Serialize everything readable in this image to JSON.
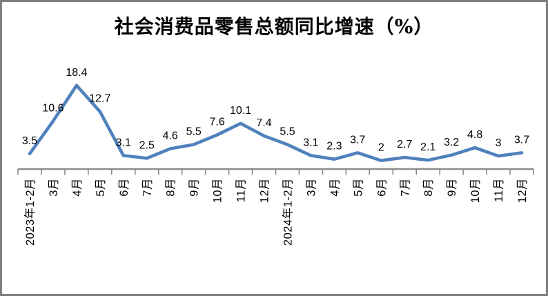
{
  "frame": {
    "border_color": "#7f7f7f",
    "background": "#ffffff"
  },
  "chart_data": {
    "type": "line",
    "title": "社会消费品零售总额同比增速（%）",
    "categories": [
      "2023年1-2月",
      "3月",
      "4月",
      "5月",
      "6月",
      "7月",
      "8月",
      "9月",
      "10月",
      "11月",
      "12月",
      "2024年1-2月",
      "3月",
      "4月",
      "5月",
      "6月",
      "7月",
      "8月",
      "9月",
      "10月",
      "11月",
      "12月"
    ],
    "values": [
      3.5,
      10.6,
      18.4,
      12.7,
      3.1,
      2.5,
      4.6,
      5.5,
      7.6,
      10.1,
      7.4,
      5.5,
      3.1,
      2.3,
      3.7,
      2,
      2.7,
      2.1,
      3.2,
      4.8,
      3,
      3.7
    ],
    "data_labels": [
      "3.5",
      "10.6",
      "18.4",
      "12.7",
      "3.1",
      "2.5",
      "4.6",
      "5.5",
      "7.6",
      "10.1",
      "7.4",
      "5.5",
      "3.1",
      "2.3",
      "3.7",
      "2",
      "2.7",
      "2.1",
      "3.2",
      "4.8",
      "3",
      "3.7"
    ],
    "xlabel": "",
    "ylabel": "",
    "ylim": [
      0,
      20
    ],
    "grid": "off",
    "legend": "none",
    "line_color": "#4F81BD",
    "axis_color": "#8A8A8A",
    "label_color": "#000000"
  }
}
